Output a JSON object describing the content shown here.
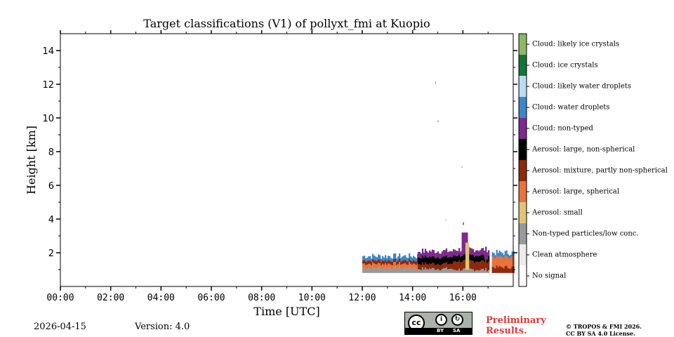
{
  "chart_data": {
    "type": "heatmap",
    "title": "Target classifications (V1) of pollyxt_fmi at Kuopio",
    "xlabel": "Time [UTC]",
    "ylabel": "Height [km]",
    "xlim_hours": [
      0,
      18
    ],
    "ylim_km": [
      0,
      15
    ],
    "x_ticks": [
      {
        "value": 0,
        "label": "00:00"
      },
      {
        "value": 2,
        "label": "02:00"
      },
      {
        "value": 4,
        "label": "04:00"
      },
      {
        "value": 6,
        "label": "06:00"
      },
      {
        "value": 8,
        "label": "08:00"
      },
      {
        "value": 10,
        "label": "10:00"
      },
      {
        "value": 12,
        "label": "12:00"
      },
      {
        "value": 14,
        "label": "14:00"
      },
      {
        "value": 16,
        "label": "16:00"
      }
    ],
    "y_ticks": [
      {
        "value": 2,
        "label": "2"
      },
      {
        "value": 4,
        "label": "4"
      },
      {
        "value": 6,
        "label": "6"
      },
      {
        "value": 8,
        "label": "8"
      },
      {
        "value": 10,
        "label": "10"
      },
      {
        "value": 12,
        "label": "12"
      },
      {
        "value": 14,
        "label": "14"
      }
    ],
    "classes": [
      {
        "label": "No signal",
        "color": "#ffffff"
      },
      {
        "label": "Clean atmosphere",
        "color": "#ececec"
      },
      {
        "label": "Non-typed particles/low conc.",
        "color": "#999999"
      },
      {
        "label": "Aerosol: small",
        "color": "#dfc476"
      },
      {
        "label": "Aerosol: large, spherical",
        "color": "#e8733b"
      },
      {
        "label": "Aerosol: mixture, partly non-spherical",
        "color": "#8c2a0b"
      },
      {
        "label": "Aerosol: large, non-spherical",
        "color": "#000000"
      },
      {
        "label": "Cloud: non-typed",
        "color": "#7d2a8c"
      },
      {
        "label": "Cloud: water droplets",
        "color": "#3b87c8"
      },
      {
        "label": "Cloud: likely water droplets",
        "color": "#b8dcf5"
      },
      {
        "label": "Cloud: ice crystals",
        "color": "#127638"
      },
      {
        "label": "Cloud: likely ice crystals",
        "color": "#8cb865"
      }
    ],
    "profiles": [
      {
        "t0": 12.0,
        "t1": 14.2,
        "base": 0.8,
        "top": 1.8,
        "layers": [
          {
            "cls": "Non-typed particles/low conc.",
            "from": 0.8,
            "to": 1.1
          },
          {
            "cls": "Aerosol: large, spherical",
            "from": 1.1,
            "to": 1.35
          },
          {
            "cls": "Aerosol: mixture, partly non-spherical",
            "from": 1.35,
            "to": 1.55
          },
          {
            "cls": "Cloud: water droplets",
            "from": 1.55,
            "to": 1.8
          }
        ]
      },
      {
        "t0": 14.2,
        "t1": 15.6,
        "base": 0.8,
        "top": 2.1,
        "layers": [
          {
            "cls": "Non-typed particles/low conc.",
            "from": 0.8,
            "to": 1.05
          },
          {
            "cls": "Aerosol: mixture, partly non-spherical",
            "from": 1.05,
            "to": 1.35
          },
          {
            "cls": "Aerosol: large, non-spherical",
            "from": 1.35,
            "to": 1.75
          },
          {
            "cls": "Cloud: non-typed",
            "from": 1.75,
            "to": 2.1
          }
        ]
      },
      {
        "t0": 15.6,
        "t1": 17.0,
        "base": 0.8,
        "top": 2.2,
        "layers": [
          {
            "cls": "Non-typed particles/low conc.",
            "from": 0.8,
            "to": 1.0
          },
          {
            "cls": "Aerosol: mixture, partly non-spherical",
            "from": 1.0,
            "to": 1.5
          },
          {
            "cls": "Aerosol: large, non-spherical",
            "from": 1.5,
            "to": 1.85
          },
          {
            "cls": "Cloud: non-typed",
            "from": 1.85,
            "to": 2.2
          }
        ]
      },
      {
        "t0": 17.15,
        "t1": 18.0,
        "base": 0.8,
        "top": 2.0,
        "layers": [
          {
            "cls": "Aerosol: mixture, partly non-spherical",
            "from": 0.8,
            "to": 1.15
          },
          {
            "cls": "Aerosol: large, spherical",
            "from": 1.15,
            "to": 1.75
          },
          {
            "cls": "Cloud: water droplets",
            "from": 1.75,
            "to": 2.0
          }
        ]
      }
    ],
    "features": [
      {
        "cls": "Cloud: non-typed",
        "t0": 15.95,
        "t1": 16.2,
        "from": 2.0,
        "to": 3.2
      },
      {
        "cls": "Aerosol: small",
        "t0": 16.1,
        "t1": 16.25,
        "from": 1.0,
        "to": 2.6
      },
      {
        "cls": "Cloud: non-typed",
        "t0": 16.85,
        "t1": 17.0,
        "from": 1.6,
        "to": 1.95
      },
      {
        "cls": "Cloud: water droplets",
        "t0": 14.9,
        "t1": 14.93,
        "from": 12.05,
        "to": 12.15
      },
      {
        "cls": "Cloud: water droplets",
        "t0": 15.0,
        "t1": 15.03,
        "from": 9.75,
        "to": 9.85
      },
      {
        "cls": "Cloud: water droplets",
        "t0": 15.95,
        "t1": 15.98,
        "from": 7.05,
        "to": 7.12
      },
      {
        "cls": "Cloud: non-typed",
        "t0": 16.0,
        "t1": 16.04,
        "from": 3.65,
        "to": 3.8
      },
      {
        "cls": "Cloud: water droplets",
        "t0": 15.3,
        "t1": 15.33,
        "from": 3.9,
        "to": 3.95
      }
    ]
  },
  "footer": {
    "date": "2026-04-15",
    "version": "Version: 4.0",
    "preliminary": "Preliminary\nResults.",
    "copyright_line1": "© TROPOS & FMI 2026.",
    "copyright_line2": "CC BY SA 4.0 License.",
    "cc_badge": {
      "cc": "cc",
      "by": "BY",
      "sa": "SA"
    }
  }
}
